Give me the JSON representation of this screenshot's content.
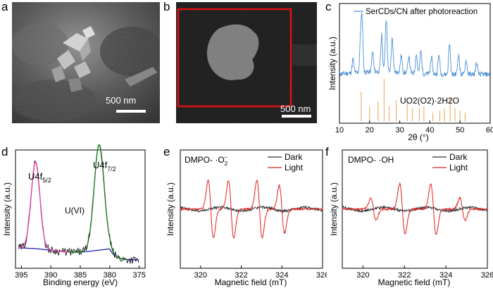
{
  "panel_letters": {
    "a": "a",
    "b": "b",
    "c": "c",
    "d": "d",
    "e": "e",
    "f": "f"
  },
  "panel_a": {
    "scale_label": "500 nm"
  },
  "panel_b": {
    "scale_label": "500 nm"
  },
  "colors": {
    "xrd_line": "#4a90d9",
    "xrd_ref": "#f0a050",
    "xps_raw": "#000000",
    "xps_fit1": "#e040a0",
    "xps_fit2": "#208020",
    "xps_bg": "#1010a0",
    "epr_dark": "#333333",
    "epr_light": "#e02020",
    "highlight_box": "#e01010"
  },
  "chart_data": [
    {
      "id": "c",
      "type": "line",
      "legend": [
        "SerCDs/CN after photoreaction"
      ],
      "reference_label": "UO2(O2)·2H2O",
      "xlabel": "2θ (°)",
      "ylabel": "Intensity (a.u.)",
      "xlim": [
        10,
        60
      ],
      "xticks": [
        "10",
        "20",
        "30",
        "40",
        "50",
        "60"
      ],
      "peaks": [
        {
          "x": 14.5,
          "h": 0.25
        },
        {
          "x": 17.0,
          "h": 0.55
        },
        {
          "x": 17.5,
          "h": 0.85
        },
        {
          "x": 21.0,
          "h": 0.35
        },
        {
          "x": 24.0,
          "h": 0.65
        },
        {
          "x": 25.5,
          "h": 0.95
        },
        {
          "x": 27.5,
          "h": 0.6
        },
        {
          "x": 30.5,
          "h": 0.3
        },
        {
          "x": 33.0,
          "h": 0.3
        },
        {
          "x": 35.5,
          "h": 0.35
        },
        {
          "x": 37.0,
          "h": 0.4
        },
        {
          "x": 40.5,
          "h": 0.3
        },
        {
          "x": 43.0,
          "h": 0.35
        },
        {
          "x": 46.5,
          "h": 0.55
        },
        {
          "x": 49.5,
          "h": 0.35
        },
        {
          "x": 52.0,
          "h": 0.25
        },
        {
          "x": 55.5,
          "h": 0.2
        }
      ],
      "ref_lines": [
        {
          "x": 17.2,
          "h": 0.7
        },
        {
          "x": 20.0,
          "h": 0.35
        },
        {
          "x": 22.8,
          "h": 0.45
        },
        {
          "x": 24.8,
          "h": 1.0
        },
        {
          "x": 26.5,
          "h": 0.35
        },
        {
          "x": 28.8,
          "h": 0.5
        },
        {
          "x": 32.5,
          "h": 0.45
        },
        {
          "x": 34.2,
          "h": 0.3
        },
        {
          "x": 36.5,
          "h": 0.3
        },
        {
          "x": 38.0,
          "h": 0.35
        },
        {
          "x": 41.0,
          "h": 0.2
        },
        {
          "x": 43.3,
          "h": 0.25
        },
        {
          "x": 44.8,
          "h": 0.3
        },
        {
          "x": 46.7,
          "h": 0.55
        },
        {
          "x": 48.3,
          "h": 0.3
        },
        {
          "x": 50.0,
          "h": 0.25
        },
        {
          "x": 51.7,
          "h": 0.2
        }
      ]
    },
    {
      "id": "d",
      "type": "line",
      "title_labels": {
        "peak1": "U4f",
        "peak1_sub": "5/2",
        "peak2": "U4f",
        "peak2_sub": "7/2",
        "state": "U(VI)"
      },
      "xlabel": "Binding energy (eV)",
      "ylabel": "Intensity (a.u.)",
      "xlim": [
        396,
        374
      ],
      "xticks": [
        "395",
        "390",
        "385",
        "380",
        "375"
      ],
      "peak_centers": [
        392.6,
        381.8
      ],
      "peak_heights": [
        0.78,
        0.95
      ],
      "peak_widths": [
        0.75,
        0.85
      ]
    },
    {
      "id": "e",
      "type": "line",
      "annotation": "DMPO- ·O",
      "annotation_sub": "2",
      "annotation_sup": "−",
      "legend": [
        "Dark",
        "Light"
      ],
      "xlabel": "Magnetic field (mT)",
      "ylabel": "Intensity (a.u.)",
      "xlim": [
        319,
        326
      ],
      "xticks": [
        "320",
        "322",
        "324",
        "326"
      ],
      "line_centers": [
        320.5,
        321.5,
        322.9,
        324.0
      ],
      "line_amplitudes": [
        0.9,
        0.9,
        0.9,
        0.75
      ]
    },
    {
      "id": "f",
      "type": "line",
      "annotation": "DMPO- ·OH",
      "legend": [
        "Dark",
        "Light"
      ],
      "xlabel": "Magnetic field (mT)",
      "ylabel": "Intensity (a.u.)",
      "xlim": [
        319,
        326
      ],
      "xticks": [
        "320",
        "322",
        "324",
        "326"
      ],
      "line_centers": [
        320.5,
        321.9,
        323.4,
        324.8
      ],
      "line_amplitudes": [
        0.35,
        0.8,
        0.8,
        0.35
      ]
    }
  ]
}
